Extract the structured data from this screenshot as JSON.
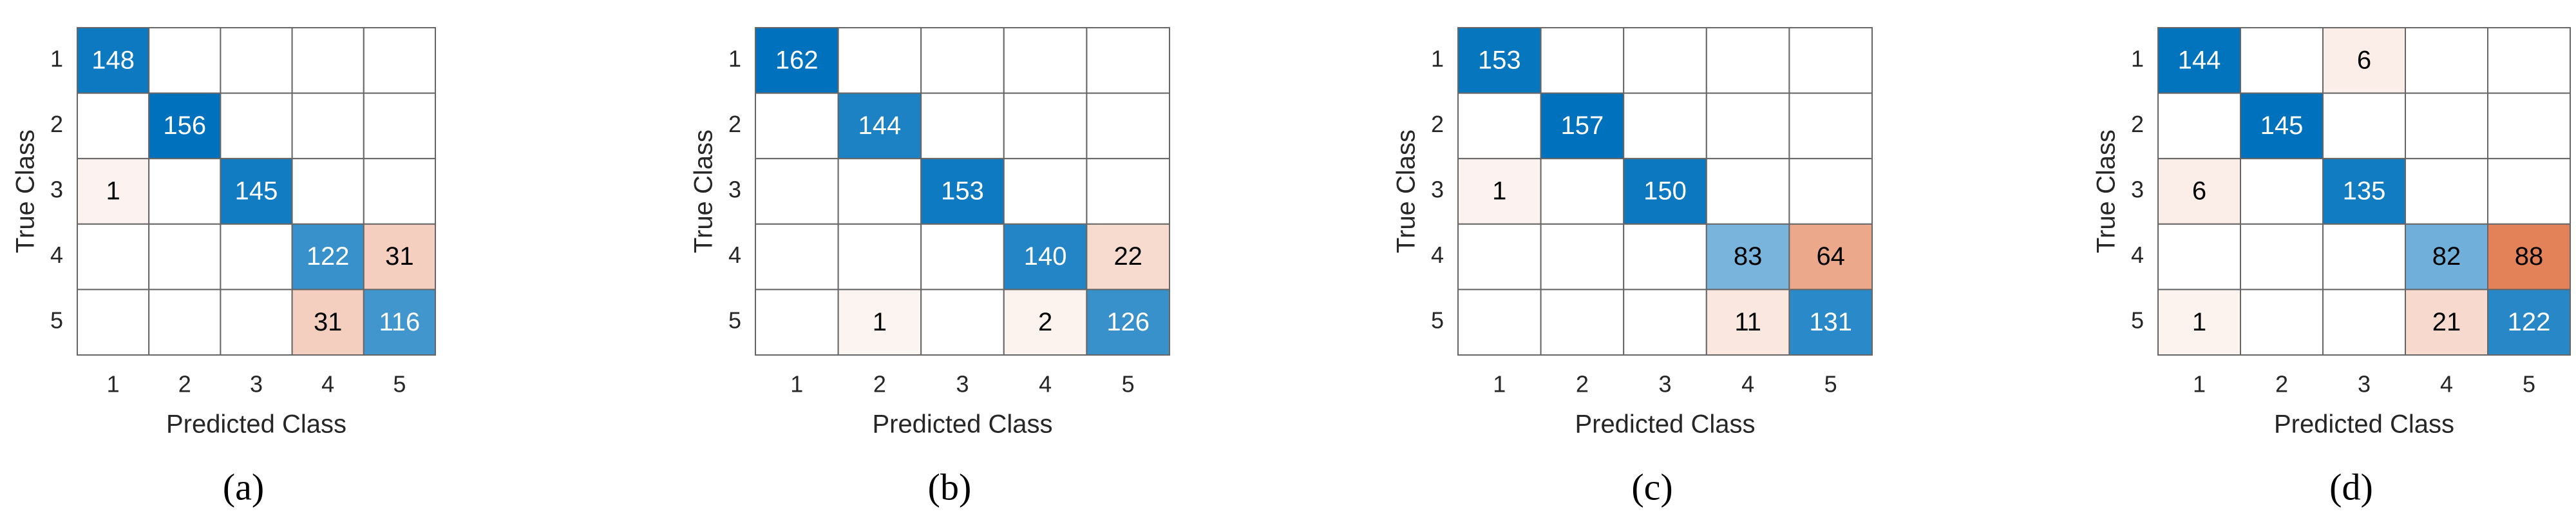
{
  "chart_data": [
    {
      "type": "confusion_matrix",
      "caption": "(a)",
      "xlabel": "Predicted Class",
      "ylabel": "True Class",
      "x_categories": [
        "1",
        "2",
        "3",
        "4",
        "5"
      ],
      "y_categories": [
        "1",
        "2",
        "3",
        "4",
        "5"
      ],
      "diagonal_color": "#0072bd",
      "off_diagonal_color": "#d95319",
      "values": [
        [
          148,
          null,
          null,
          null,
          null
        ],
        [
          null,
          156,
          null,
          null,
          null
        ],
        [
          1,
          null,
          145,
          null,
          null
        ],
        [
          null,
          null,
          null,
          122,
          31
        ],
        [
          null,
          null,
          null,
          31,
          116
        ]
      ]
    },
    {
      "type": "confusion_matrix",
      "caption": "(b)",
      "xlabel": "Predicted Class",
      "ylabel": "True Class",
      "x_categories": [
        "1",
        "2",
        "3",
        "4",
        "5"
      ],
      "y_categories": [
        "1",
        "2",
        "3",
        "4",
        "5"
      ],
      "diagonal_color": "#0072bd",
      "off_diagonal_color": "#d95319",
      "values": [
        [
          162,
          null,
          null,
          null,
          null
        ],
        [
          null,
          144,
          null,
          null,
          null
        ],
        [
          null,
          null,
          153,
          null,
          null
        ],
        [
          null,
          null,
          null,
          140,
          22
        ],
        [
          null,
          1,
          null,
          2,
          126
        ]
      ]
    },
    {
      "type": "confusion_matrix",
      "caption": "(c)",
      "xlabel": "Predicted Class",
      "ylabel": "True Class",
      "x_categories": [
        "1",
        "2",
        "3",
        "4",
        "5"
      ],
      "y_categories": [
        "1",
        "2",
        "3",
        "4",
        "5"
      ],
      "diagonal_color": "#0072bd",
      "off_diagonal_color": "#d95319",
      "values": [
        [
          153,
          null,
          null,
          null,
          null
        ],
        [
          null,
          157,
          null,
          null,
          null
        ],
        [
          1,
          null,
          150,
          null,
          null
        ],
        [
          null,
          null,
          null,
          83,
          64
        ],
        [
          null,
          null,
          null,
          11,
          131
        ]
      ]
    },
    {
      "type": "confusion_matrix",
      "caption": "(d)",
      "xlabel": "Predicted Class",
      "ylabel": "True Class",
      "x_categories": [
        "1",
        "2",
        "3",
        "4",
        "5"
      ],
      "y_categories": [
        "1",
        "2",
        "3",
        "4",
        "5"
      ],
      "diagonal_color": "#0072bd",
      "off_diagonal_color": "#d95319",
      "values": [
        [
          144,
          null,
          6,
          null,
          null
        ],
        [
          null,
          145,
          null,
          null,
          null
        ],
        [
          6,
          null,
          135,
          null,
          null
        ],
        [
          null,
          null,
          null,
          82,
          88
        ],
        [
          1,
          null,
          null,
          21,
          122
        ]
      ]
    }
  ]
}
